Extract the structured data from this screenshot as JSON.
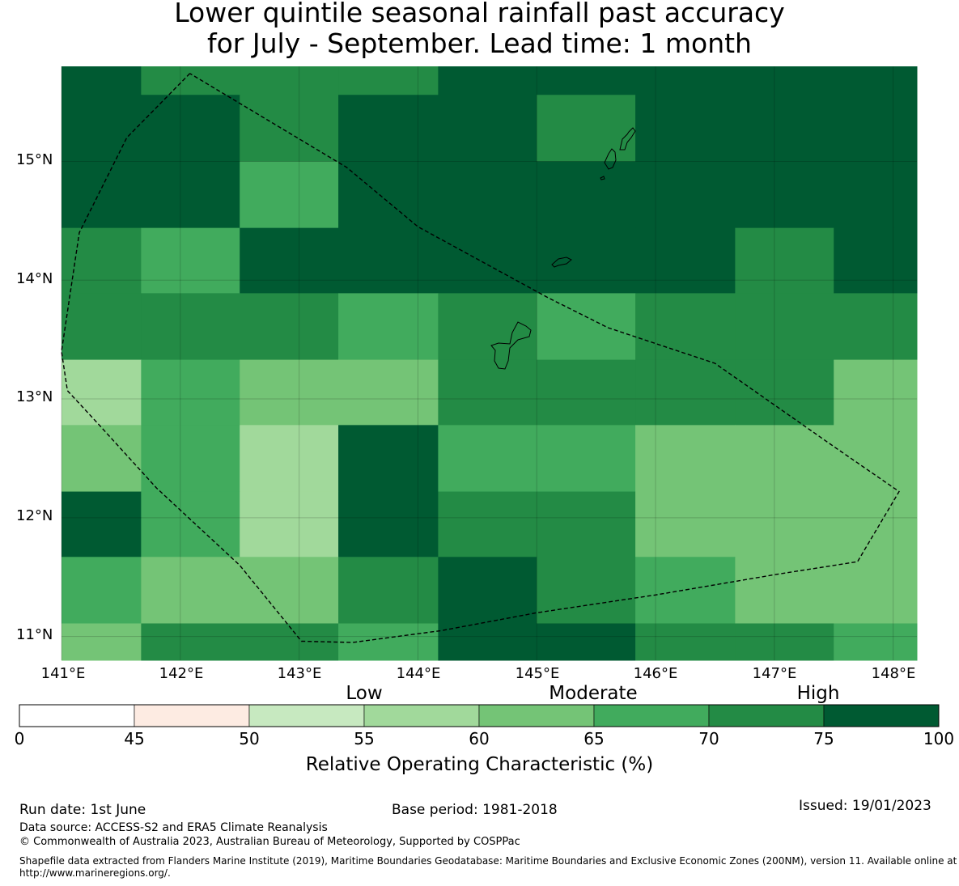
{
  "title_line1": "Lower quintile seasonal rainfall past accuracy",
  "title_line2": "for July - September. Lead time: 1 month",
  "map": {
    "lon_range": [
      141.0,
      148.2
    ],
    "lat_range": [
      10.8,
      15.8
    ],
    "lat_labels": [
      "15°N",
      "14°N",
      "13°N",
      "12°N",
      "11°N"
    ],
    "lat_values": [
      15,
      14,
      13,
      12,
      11
    ],
    "lon_labels": [
      "141°E",
      "142°E",
      "143°E",
      "144°E",
      "145°E",
      "146°E",
      "147°E",
      "148°E"
    ],
    "lon_values": [
      141,
      142,
      143,
      144,
      145,
      146,
      147,
      148
    ],
    "grid_lines": true,
    "cell_lon_edges": [
      141.0,
      141.67,
      142.5,
      143.33,
      144.17,
      145.0,
      145.83,
      146.67,
      147.5,
      148.2
    ],
    "cell_lat_edges": [
      15.8,
      15.56,
      15.0,
      14.44,
      13.89,
      13.33,
      12.78,
      12.22,
      11.67,
      11.11,
      10.8
    ],
    "roc_bins": [
      [
        75,
        70,
        70,
        70,
        75,
        75,
        75,
        75,
        75
      ],
      [
        75,
        75,
        70,
        75,
        75,
        70,
        75,
        75,
        75
      ],
      [
        75,
        75,
        65,
        75,
        75,
        75,
        75,
        75,
        75
      ],
      [
        70,
        65,
        75,
        75,
        75,
        75,
        75,
        70,
        75
      ],
      [
        70,
        70,
        70,
        65,
        70,
        65,
        70,
        70,
        70
      ],
      [
        55,
        65,
        60,
        60,
        70,
        70,
        70,
        70,
        60
      ],
      [
        60,
        65,
        55,
        75,
        65,
        65,
        60,
        60,
        60
      ],
      [
        75,
        65,
        55,
        75,
        70,
        70,
        60,
        60,
        60
      ],
      [
        65,
        60,
        60,
        70,
        75,
        70,
        65,
        60,
        60
      ],
      [
        60,
        70,
        70,
        65,
        75,
        75,
        70,
        70,
        65
      ]
    ],
    "eez_boundary": [
      [
        142.08,
        15.74
      ],
      [
        141.55,
        15.2
      ],
      [
        141.15,
        14.4
      ],
      [
        141.0,
        13.4
      ],
      [
        141.05,
        13.07
      ],
      [
        141.3,
        12.8
      ],
      [
        141.8,
        12.25
      ],
      [
        142.5,
        11.6
      ],
      [
        143.02,
        10.96
      ],
      [
        143.45,
        10.95
      ],
      [
        144.2,
        11.05
      ],
      [
        145.0,
        11.2
      ],
      [
        146.0,
        11.35
      ],
      [
        147.0,
        11.52
      ],
      [
        147.7,
        11.63
      ],
      [
        148.05,
        12.22
      ],
      [
        147.5,
        12.6
      ],
      [
        146.5,
        13.3
      ],
      [
        145.6,
        13.6
      ],
      [
        145.1,
        13.85
      ],
      [
        144.0,
        14.45
      ],
      [
        143.4,
        14.95
      ],
      [
        142.08,
        15.74
      ]
    ],
    "boundary_color": "#000000"
  },
  "legend": {
    "categories": [
      {
        "label": "Low",
        "value": 55
      },
      {
        "label": "Moderate",
        "value": 65
      },
      {
        "label": "High",
        "value": 75
      }
    ],
    "bins": [
      {
        "from": 0,
        "to": 45,
        "color": "#ffffff"
      },
      {
        "from": 45,
        "to": 50,
        "color": "#fdebe2"
      },
      {
        "from": 50,
        "to": 55,
        "color": "#c7e9c0"
      },
      {
        "from": 55,
        "to": 60,
        "color": "#a1d99b"
      },
      {
        "from": 60,
        "to": 65,
        "color": "#74c476"
      },
      {
        "from": 65,
        "to": 70,
        "color": "#41ab5d"
      },
      {
        "from": 70,
        "to": 75,
        "color": "#238b45"
      },
      {
        "from": 75,
        "to": 100,
        "color": "#005a32"
      }
    ],
    "ticks": [
      "0",
      "45",
      "50",
      "55",
      "60",
      "65",
      "70",
      "75",
      "100"
    ],
    "label": "Relative Operating Characteristic (%)"
  },
  "footer": {
    "run_date": "Run date: 1st June",
    "base_period": "Base period: 1981-2018",
    "issued": "Issued: 19/01/2023",
    "data_source": "Data source: ACCESS-S2 and ERA5 Climate Reanalysis",
    "copyright": "© Commonwealth of Australia 2023, Australian Bureau of Meteorology, Supported by COSPPac",
    "shapefile": "Shapefile data extracted from Flanders Marine Institute (2019), Maritime Boundaries Geodatabase: Maritime Boundaries and Exclusive Economic Zones (200NM), version 11. Available online at http://www.marineregions.org/."
  }
}
